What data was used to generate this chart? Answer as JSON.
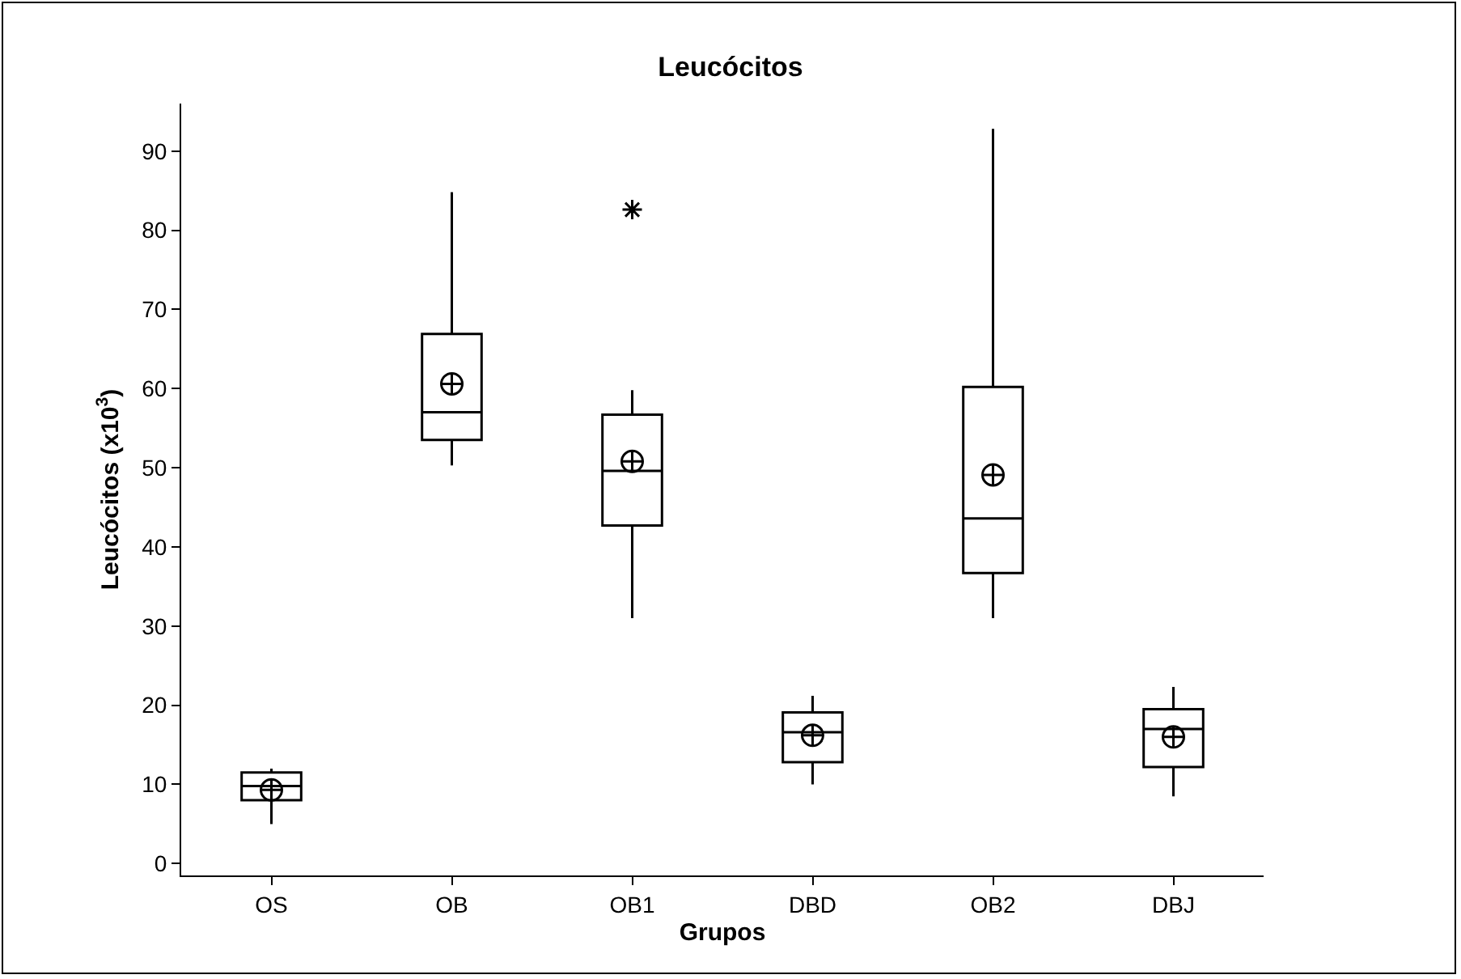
{
  "chart_data": {
    "type": "box",
    "title": "Leucócitos",
    "xlabel": "Grupos",
    "ylabel": "Leucócitos (x10$^{3}$)",
    "categories": [
      "OS",
      "OB",
      "OB1",
      "DBD",
      "OB2",
      "DBJ"
    ],
    "boxes": [
      {
        "low": 5,
        "q1": 8,
        "median": 9.8,
        "q3": 11.5,
        "high": 12,
        "mean": 9.3
      },
      {
        "low": 50.3,
        "q1": 53.5,
        "median": 57,
        "q3": 66.9,
        "high": 84.8,
        "mean": 60.6
      },
      {
        "low": 31,
        "q1": 42.7,
        "median": 49.6,
        "q3": 56.7,
        "high": 59.8,
        "mean": 50.8,
        "outliers": [
          82.6
        ]
      },
      {
        "low": 10,
        "q1": 12.8,
        "median": 16.6,
        "q3": 19.1,
        "high": 21.2,
        "mean": 16.2
      },
      {
        "low": 31,
        "q1": 36.7,
        "median": 43.6,
        "q3": 60.2,
        "high": 92.8,
        "mean": 49.1
      },
      {
        "low": 8.5,
        "q1": 12.2,
        "median": 17,
        "q3": 19.5,
        "high": 22.3,
        "mean": 16
      }
    ],
    "color": "#000000",
    "ylim": [
      -1.5,
      96
    ],
    "yticks": [
      0,
      10,
      20,
      30,
      40,
      50,
      60,
      70,
      80,
      90
    ],
    "grid": false
  }
}
